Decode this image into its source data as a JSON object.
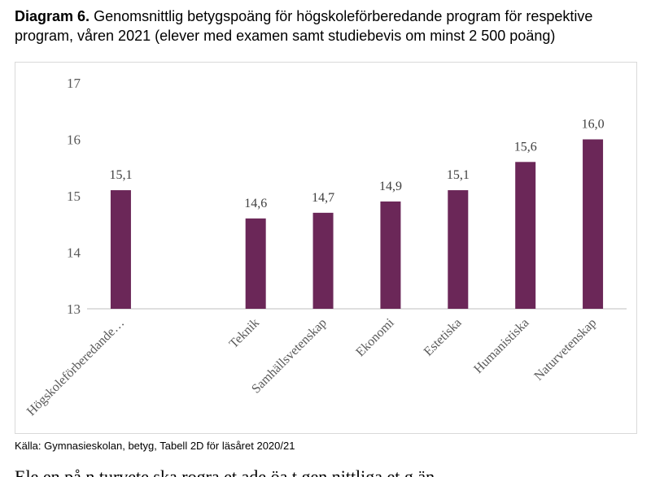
{
  "header": {
    "label": "Diagram 6.",
    "text": "Genomsnittlig betygspoäng för högskoleförberedande program för respektive program, våren 2021 (elever med examen samt studiebevis om minst 2 500 poäng)"
  },
  "chart_data": {
    "type": "bar",
    "categories": [
      "Högskoleförberedande…",
      "",
      "Teknik",
      "Samhällsvetenskap",
      "Ekonomi",
      "Estetiska",
      "Humanistiska",
      "Naturvetenskap"
    ],
    "values": [
      15.1,
      null,
      14.6,
      14.7,
      14.9,
      15.1,
      15.6,
      16.0
    ],
    "value_labels": [
      "15,1",
      "",
      "14,6",
      "14,7",
      "14,9",
      "15,1",
      "15,6",
      "16,0"
    ],
    "ylim": [
      13,
      17
    ],
    "yticks": [
      13,
      14,
      15,
      16,
      17
    ],
    "ytick_labels": [
      "13",
      "14",
      "15",
      "16",
      "17"
    ],
    "bar_color": "#6b2758",
    "grid": false,
    "legend": "none"
  },
  "footer": {
    "source": "Källa: Gymnasieskolan, betyg, Tabell 2D för läsåret 2020/21",
    "cut_text": "Ele    en på n  turvete  ska  rogra  et  ade    öa  t gen  nittliga  et  g   än"
  }
}
